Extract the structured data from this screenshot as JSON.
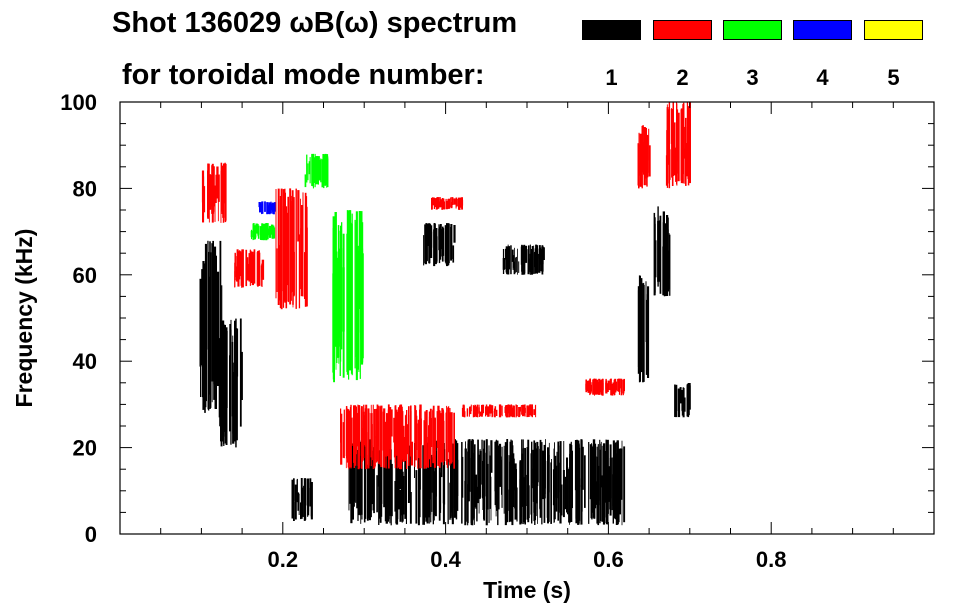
{
  "title_line1": "Shot 136029 ωB(ω) spectrum",
  "title_line2": "for toroidal mode number:",
  "legend": [
    {
      "label": "1",
      "color": "#000000"
    },
    {
      "label": "2",
      "color": "#ff0000"
    },
    {
      "label": "3",
      "color": "#00ff00"
    },
    {
      "label": "4",
      "color": "#0000ff"
    },
    {
      "label": "5",
      "color": "#ffff00"
    }
  ],
  "chart_data": {
    "type": "heatmap",
    "title": "Shot 136029 ωB(ω) spectrum",
    "xlabel": "Time (s)",
    "ylabel": "Frequency (kHz)",
    "xlim": [
      0.0,
      1.0
    ],
    "ylim": [
      0,
      100
    ],
    "xticks": [
      0.2,
      0.4,
      0.6,
      0.8
    ],
    "xtick_labels": [
      "0.2",
      "0.4",
      "0.6",
      "0.8"
    ],
    "yticks": [
      0,
      20,
      40,
      60,
      80,
      100
    ],
    "ytick_labels": [
      "0",
      "20",
      "40",
      "60",
      "80",
      "100"
    ],
    "series": [
      {
        "name": "n=1",
        "color": "#000000",
        "regions": [
          {
            "t": [
              0.095,
              0.125
            ],
            "f": [
              28,
              68
            ]
          },
          {
            "t": [
              0.12,
              0.15
            ],
            "f": [
              20,
              50
            ]
          },
          {
            "t": [
              0.21,
              0.235
            ],
            "f": [
              3,
              13
            ]
          },
          {
            "t": [
              0.28,
              0.62
            ],
            "f": [
              2,
              22
            ]
          },
          {
            "t": [
              0.37,
              0.41
            ],
            "f": [
              62,
              72
            ]
          },
          {
            "t": [
              0.47,
              0.52
            ],
            "f": [
              60,
              67
            ]
          },
          {
            "t": [
              0.635,
              0.65
            ],
            "f": [
              35,
              60
            ]
          },
          {
            "t": [
              0.655,
              0.675
            ],
            "f": [
              55,
              76
            ]
          },
          {
            "t": [
              0.68,
              0.7
            ],
            "f": [
              27,
              35
            ]
          }
        ]
      },
      {
        "name": "n=2",
        "color": "#ff0000",
        "regions": [
          {
            "t": [
              0.1,
              0.13
            ],
            "f": [
              72,
              86
            ]
          },
          {
            "t": [
              0.14,
              0.175
            ],
            "f": [
              57,
              66
            ]
          },
          {
            "t": [
              0.19,
              0.23
            ],
            "f": [
              52,
              80
            ]
          },
          {
            "t": [
              0.27,
              0.41
            ],
            "f": [
              15,
              30
            ]
          },
          {
            "t": [
              0.38,
              0.42
            ],
            "f": [
              75,
              78
            ]
          },
          {
            "t": [
              0.42,
              0.51
            ],
            "f": [
              27,
              30
            ]
          },
          {
            "t": [
              0.57,
              0.62
            ],
            "f": [
              32,
              36
            ]
          },
          {
            "t": [
              0.635,
              0.65
            ],
            "f": [
              80,
              95
            ]
          },
          {
            "t": [
              0.67,
              0.7
            ],
            "f": [
              80,
              100
            ]
          }
        ]
      },
      {
        "name": "n=3",
        "color": "#00ff00",
        "regions": [
          {
            "t": [
              0.16,
              0.19
            ],
            "f": [
              68,
              72
            ]
          },
          {
            "t": [
              0.225,
              0.255
            ],
            "f": [
              80,
              88
            ]
          },
          {
            "t": [
              0.26,
              0.3
            ],
            "f": [
              35,
              75
            ]
          }
        ]
      },
      {
        "name": "n=4",
        "color": "#0000ff",
        "regions": [
          {
            "t": [
              0.17,
              0.19
            ],
            "f": [
              74,
              77
            ]
          }
        ]
      },
      {
        "name": "n=5",
        "color": "#ffff00",
        "regions": []
      }
    ]
  }
}
